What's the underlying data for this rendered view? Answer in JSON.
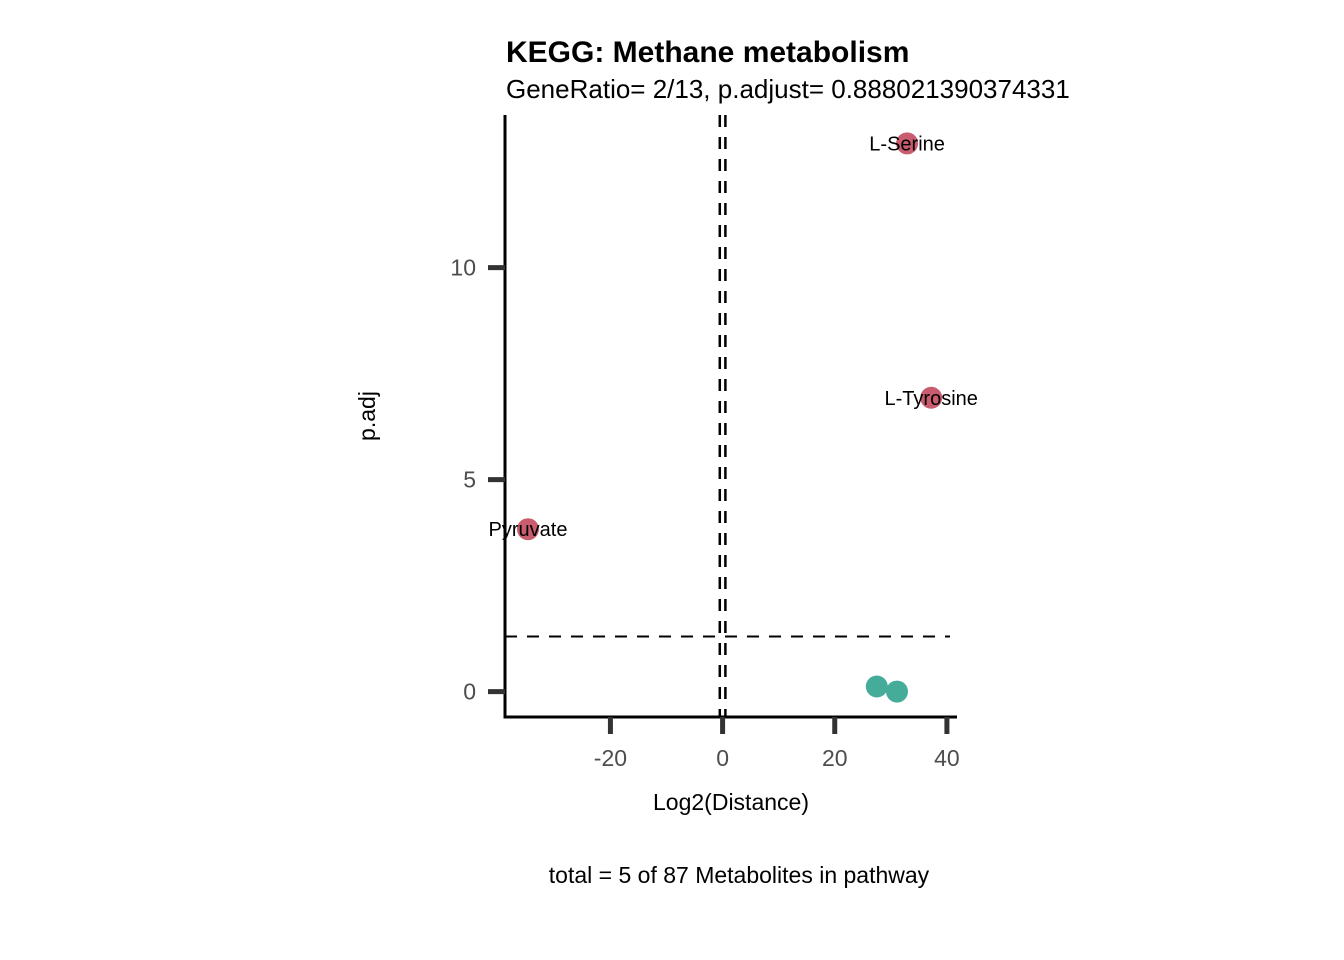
{
  "chart_data": {
    "type": "scatter",
    "title": "KEGG: Methane metabolism",
    "subtitle": "GeneRatio= 2/13, p.adjust= 0.888021390374331",
    "xlabel": "Log2(Distance)",
    "ylabel": "p.adj",
    "caption": "total = 5 of 87 Metabolites in pathway",
    "xlim": [
      -38.8,
      41.8
    ],
    "ylim": [
      -0.6,
      13.6
    ],
    "xticks": [
      -20,
      0,
      20,
      40
    ],
    "yticks": [
      0,
      5,
      10
    ],
    "grid": false,
    "hline": 1.3,
    "vlines": [
      -0.5,
      0.5
    ],
    "colors": {
      "significant": "#C95C6E",
      "nonsignificant": "#45AC9A"
    },
    "points": [
      {
        "x": 32.9,
        "y": 12.93,
        "label": "L-Serine",
        "group": "significant"
      },
      {
        "x": 37.2,
        "y": 6.93,
        "label": "L-Tyrosine",
        "group": "significant"
      },
      {
        "x": -34.7,
        "y": 3.83,
        "label": "Pyruvate",
        "group": "significant"
      },
      {
        "x": 27.5,
        "y": 0.12,
        "label": "",
        "group": "nonsignificant"
      },
      {
        "x": 31.1,
        "y": 0.0,
        "label": "",
        "group": "nonsignificant"
      }
    ]
  }
}
